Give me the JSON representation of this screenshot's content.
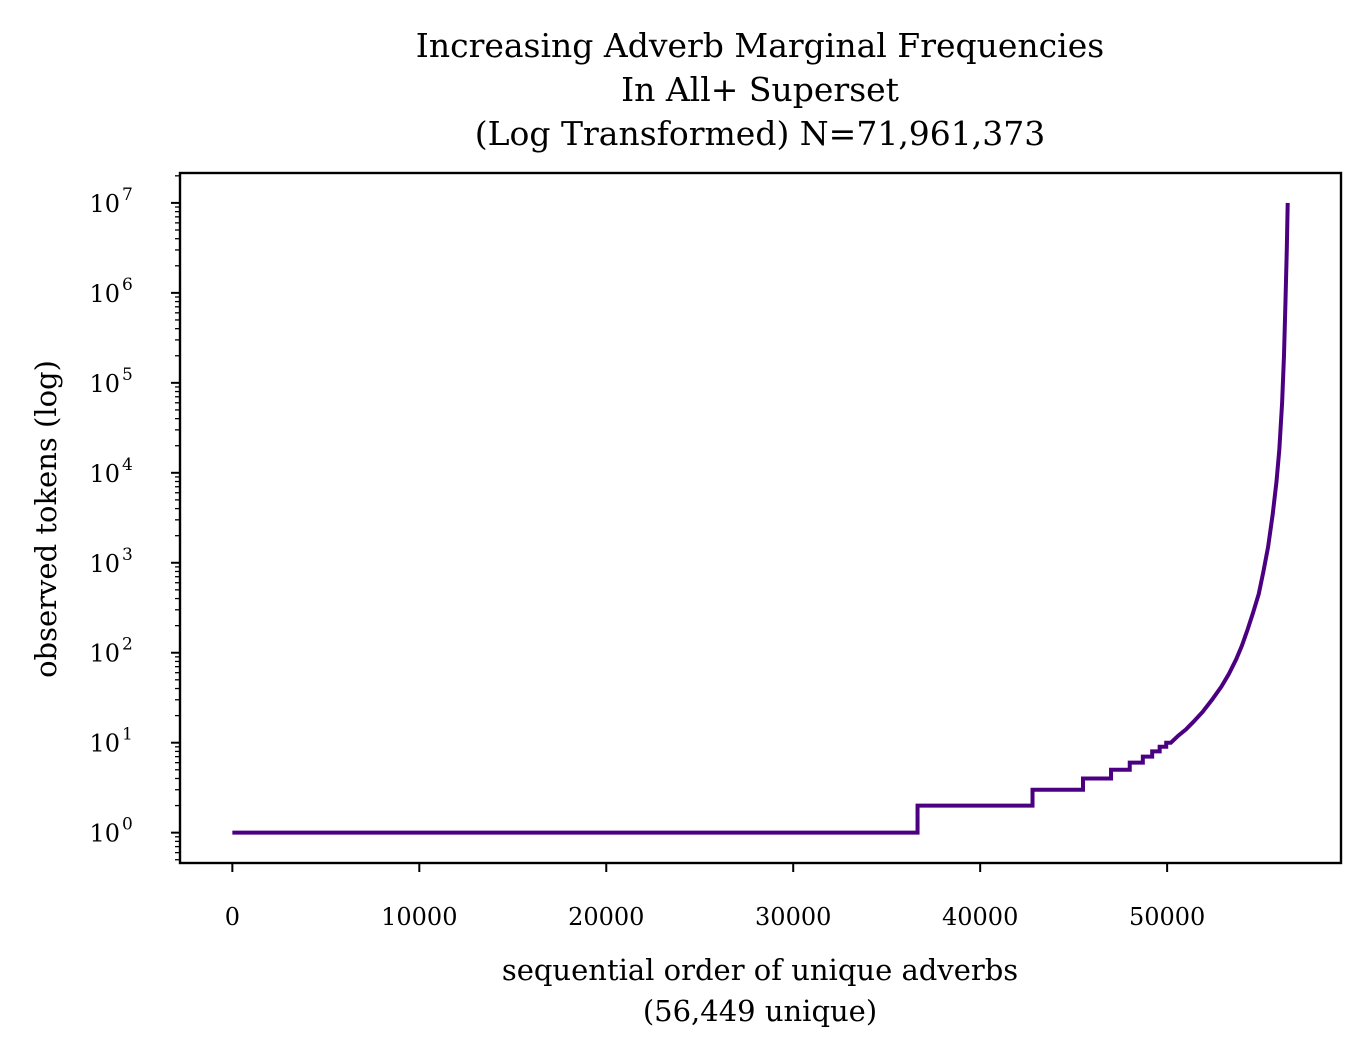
{
  "chart_data": {
    "type": "line",
    "title": [
      "Increasing Adverb Marginal Frequencies",
      "In All+ Superset",
      "(Log Transformed) N=71,961,373"
    ],
    "xlabel": [
      "sequential order of unique adverbs",
      "(56,449 unique)"
    ],
    "ylabel": "observed tokens (log)",
    "x_scale": "linear",
    "y_scale": "log",
    "xlim": [
      -2800,
      59300
    ],
    "ylim": [
      0.46,
      21500000
    ],
    "x_ticks": [
      0,
      10000,
      20000,
      30000,
      40000,
      50000
    ],
    "x_tick_labels": [
      "0",
      "10000",
      "20000",
      "30000",
      "40000",
      "50000"
    ],
    "y_ticks": [
      1,
      10,
      100,
      1000,
      10000,
      100000,
      1000000,
      10000000
    ],
    "y_tick_base": "10",
    "y_tick_exponents": [
      "0",
      "1",
      "2",
      "3",
      "4",
      "5",
      "6",
      "7"
    ],
    "grid": false,
    "line_color": "#4b0082",
    "series": [
      {
        "points": [
          [
            0,
            1
          ],
          [
            36650,
            1
          ],
          [
            36650,
            2
          ],
          [
            42800,
            2
          ],
          [
            42800,
            3
          ],
          [
            45500,
            3
          ],
          [
            45500,
            4
          ],
          [
            47000,
            4
          ],
          [
            47000,
            5
          ],
          [
            48000,
            5
          ],
          [
            48000,
            6
          ],
          [
            48700,
            6
          ],
          [
            48700,
            7
          ],
          [
            49200,
            7
          ],
          [
            49200,
            8
          ],
          [
            49600,
            8
          ],
          [
            49600,
            9
          ],
          [
            49950,
            9
          ],
          [
            49950,
            10
          ],
          [
            50200,
            10
          ],
          [
            50600,
            12
          ],
          [
            51000,
            14
          ],
          [
            51400,
            17
          ],
          [
            51900,
            22
          ],
          [
            52400,
            30
          ],
          [
            52900,
            42
          ],
          [
            53300,
            58
          ],
          [
            53700,
            85
          ],
          [
            54000,
            120
          ],
          [
            54300,
            180
          ],
          [
            54600,
            280
          ],
          [
            54900,
            450
          ],
          [
            55150,
            800
          ],
          [
            55400,
            1500
          ],
          [
            55650,
            3500
          ],
          [
            55850,
            8000
          ],
          [
            56000,
            18000
          ],
          [
            56150,
            60000
          ],
          [
            56250,
            200000
          ],
          [
            56330,
            800000
          ],
          [
            56400,
            3000000
          ],
          [
            56449,
            10000000
          ]
        ]
      }
    ]
  }
}
